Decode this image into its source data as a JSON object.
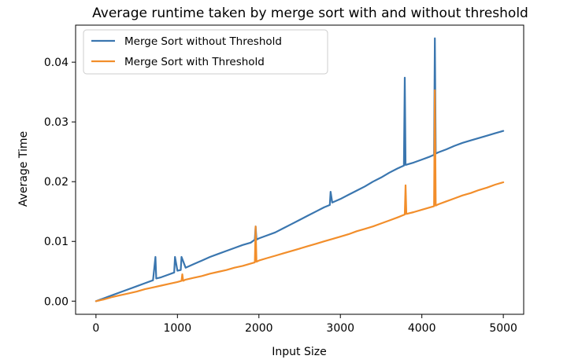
{
  "chart_data": {
    "type": "line",
    "title": "Average runtime taken by merge sort with and without threshold",
    "xlabel": "Input Size",
    "ylabel": "Average Time",
    "xlim": [
      -250,
      5250
    ],
    "ylim": [
      -0.0022,
      0.0462
    ],
    "xticks": [
      0,
      1000,
      2000,
      3000,
      4000,
      5000
    ],
    "xtick_labels": [
      "0",
      "1000",
      "2000",
      "3000",
      "4000",
      "5000"
    ],
    "yticks": [
      0.0,
      0.01,
      0.02,
      0.03,
      0.04
    ],
    "ytick_labels": [
      "0.00",
      "0.01",
      "0.02",
      "0.03",
      "0.04"
    ],
    "grid": false,
    "legend_position": "upper-left",
    "series": [
      {
        "name": "Merge Sort without Threshold",
        "color": "#3a76af",
        "x": [
          0,
          100,
          200,
          300,
          400,
          500,
          600,
          700,
          730,
          740,
          800,
          900,
          960,
          970,
          1000,
          1040,
          1050,
          1100,
          1200,
          1300,
          1400,
          1500,
          1600,
          1700,
          1800,
          1900,
          1950,
          1960,
          1970,
          2000,
          2100,
          2200,
          2300,
          2400,
          2500,
          2600,
          2700,
          2800,
          2870,
          2880,
          2900,
          3000,
          3100,
          3200,
          3300,
          3400,
          3500,
          3600,
          3700,
          3780,
          3790,
          3800,
          3900,
          4000,
          4100,
          4150,
          4160,
          4170,
          4200,
          4300,
          4400,
          4500,
          4600,
          4700,
          4800,
          4900,
          5000
        ],
        "values": [
          0.0,
          0.0005,
          0.001,
          0.0015,
          0.002,
          0.0025,
          0.003,
          0.0035,
          0.0074,
          0.0038,
          0.004,
          0.0045,
          0.0048,
          0.0074,
          0.0051,
          0.0052,
          0.0074,
          0.0056,
          0.0062,
          0.0068,
          0.0074,
          0.0079,
          0.0084,
          0.0089,
          0.0094,
          0.0098,
          0.0103,
          0.0125,
          0.0103,
          0.0105,
          0.011,
          0.0115,
          0.0122,
          0.0129,
          0.0136,
          0.0143,
          0.015,
          0.0157,
          0.0161,
          0.0183,
          0.0165,
          0.0171,
          0.0178,
          0.0185,
          0.0192,
          0.02,
          0.0207,
          0.0215,
          0.0222,
          0.0227,
          0.0374,
          0.0228,
          0.0232,
          0.0237,
          0.0242,
          0.0245,
          0.044,
          0.0247,
          0.0249,
          0.0254,
          0.026,
          0.0265,
          0.0269,
          0.0273,
          0.0277,
          0.0281,
          0.0285
        ]
      },
      {
        "name": "Merge Sort with Threshold",
        "color": "#f28e2b",
        "x": [
          0,
          100,
          200,
          300,
          400,
          500,
          600,
          700,
          800,
          900,
          1000,
          1050,
          1060,
          1070,
          1100,
          1200,
          1300,
          1400,
          1500,
          1600,
          1700,
          1800,
          1900,
          1950,
          1960,
          1970,
          2000,
          2100,
          2200,
          2300,
          2400,
          2500,
          2600,
          2700,
          2800,
          2900,
          3000,
          3100,
          3200,
          3300,
          3400,
          3500,
          3600,
          3700,
          3790,
          3800,
          3810,
          3900,
          4000,
          4100,
          4150,
          4160,
          4170,
          4200,
          4300,
          4400,
          4500,
          4600,
          4700,
          4800,
          4900,
          5000
        ],
        "values": [
          0.0,
          0.0003,
          0.0007,
          0.001,
          0.0013,
          0.0016,
          0.002,
          0.0023,
          0.0026,
          0.0029,
          0.0032,
          0.0034,
          0.0045,
          0.0034,
          0.0036,
          0.0039,
          0.0042,
          0.0046,
          0.0049,
          0.0052,
          0.0056,
          0.0059,
          0.0063,
          0.0065,
          0.0125,
          0.0066,
          0.0068,
          0.0072,
          0.0076,
          0.008,
          0.0084,
          0.0088,
          0.0092,
          0.0096,
          0.01,
          0.0104,
          0.0108,
          0.0112,
          0.0117,
          0.0121,
          0.0125,
          0.013,
          0.0135,
          0.014,
          0.0145,
          0.0194,
          0.0146,
          0.0149,
          0.0153,
          0.0157,
          0.0159,
          0.0353,
          0.016,
          0.0162,
          0.0167,
          0.0172,
          0.0177,
          0.0181,
          0.0186,
          0.019,
          0.0195,
          0.0199
        ]
      }
    ]
  }
}
